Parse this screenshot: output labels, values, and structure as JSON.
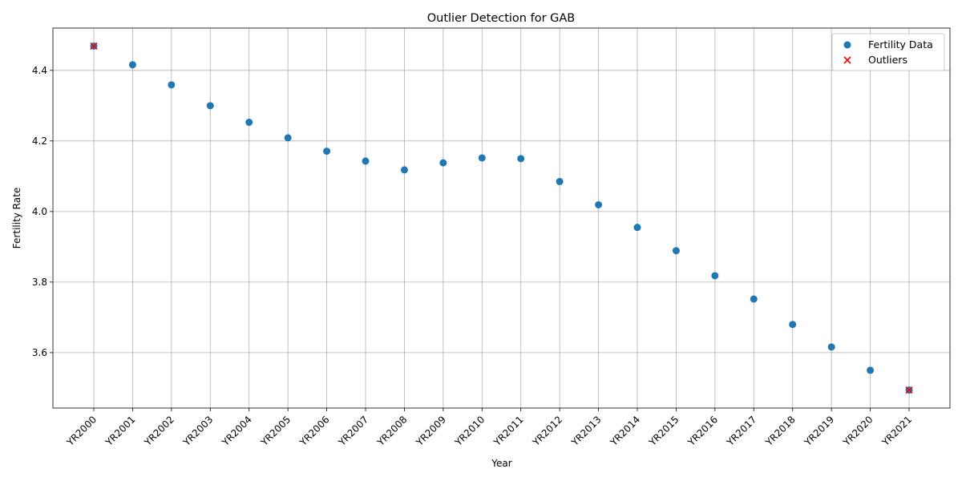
{
  "chart_data": {
    "type": "scatter",
    "title": "Outlier Detection for GAB",
    "xlabel": "Year",
    "ylabel": "Fertility Rate",
    "categories": [
      "YR2000",
      "YR2001",
      "YR2002",
      "YR2003",
      "YR2004",
      "YR2005",
      "YR2006",
      "YR2007",
      "YR2008",
      "YR2009",
      "YR2010",
      "YR2011",
      "YR2012",
      "YR2013",
      "YR2014",
      "YR2015",
      "YR2016",
      "YR2017",
      "YR2018",
      "YR2019",
      "YR2020",
      "YR2021"
    ],
    "ylim": [
      3.443,
      4.52
    ],
    "yticks": [
      3.6,
      3.8,
      4.0,
      4.2,
      4.4
    ],
    "grid": true,
    "legend_position": "top-right",
    "series": [
      {
        "name": "Fertility Data",
        "marker": "circle",
        "color": "#1f77b4",
        "values": [
          4.469,
          4.416,
          4.359,
          4.3,
          4.253,
          4.209,
          4.171,
          4.143,
          4.118,
          4.138,
          4.152,
          4.15,
          4.085,
          4.019,
          3.955,
          3.889,
          3.818,
          3.752,
          3.68,
          3.616,
          3.55,
          3.494
        ]
      },
      {
        "name": "Outliers",
        "marker": "x",
        "color": "#ff0000",
        "points": [
          {
            "x": "YR2000",
            "y": 4.469
          },
          {
            "x": "YR2021",
            "y": 3.494
          }
        ]
      }
    ]
  }
}
